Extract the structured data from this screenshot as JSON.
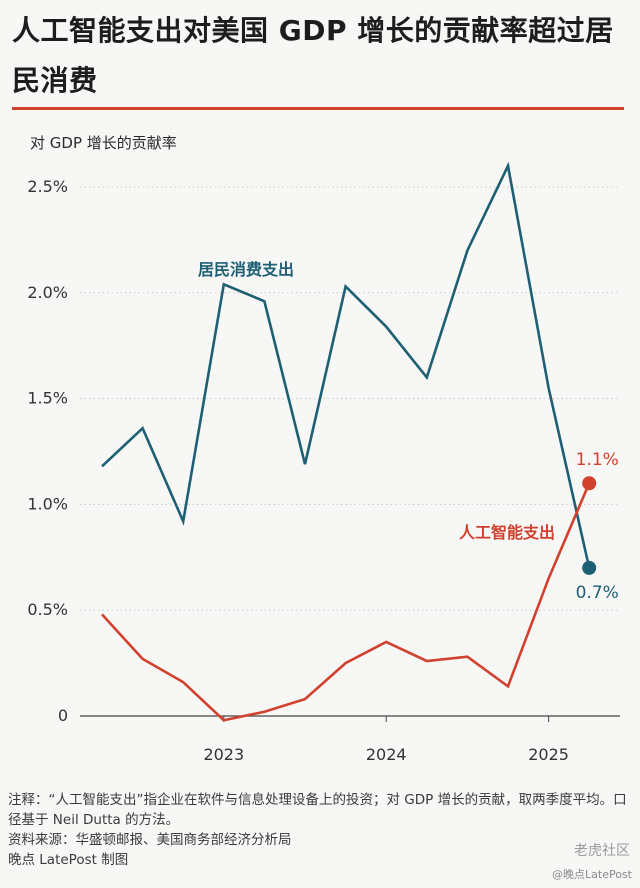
{
  "header": {
    "title": "人工智能支出对美国 GDP 增长的贡献率超过居民消费"
  },
  "chart_data": {
    "type": "line",
    "ylabel": "对 GDP 增长的贡献率",
    "y_ticks": [
      "0",
      "0.5%",
      "1.0%",
      "1.5%",
      "2.0%",
      "2.5%"
    ],
    "ylim": [
      -0.1,
      2.7
    ],
    "x_ticks": [
      "2023",
      "2024",
      "2025"
    ],
    "x": [
      "2022Q2",
      "2022Q3",
      "2022Q4",
      "2023Q1",
      "2023Q2",
      "2023Q3",
      "2023Q4",
      "2024Q1",
      "2024Q2",
      "2024Q3",
      "2024Q4",
      "2025Q1",
      "2025Q2"
    ],
    "series": [
      {
        "name": "居民消费支出",
        "color": "#1e5f74",
        "values": [
          1.18,
          1.36,
          0.92,
          2.04,
          1.96,
          1.19,
          2.03,
          1.84,
          1.6,
          2.2,
          2.6,
          1.55,
          0.7
        ],
        "end_label": "0.7%"
      },
      {
        "name": "人工智能支出",
        "color": "#d0412e",
        "values": [
          0.48,
          0.27,
          0.16,
          -0.02,
          0.02,
          0.08,
          0.25,
          0.35,
          0.26,
          0.28,
          0.14,
          0.65,
          1.1
        ],
        "end_label": "1.1%"
      }
    ],
    "grid": "horizontal-dotted"
  },
  "notes": {
    "note": "注释：“人工智能支出”指企业在软件与信息处理设备上的投资；对 GDP 增长的贡献，取两季度平均。口径基于 Neil Dutta 的方法。",
    "source": "资料来源：华盛顿邮报、美国商务部经济分析局",
    "credit": "晚点 LatePost 制图"
  },
  "watermark": {
    "corner": "老虎社区",
    "corner_sub": "@晚点LatePost"
  }
}
